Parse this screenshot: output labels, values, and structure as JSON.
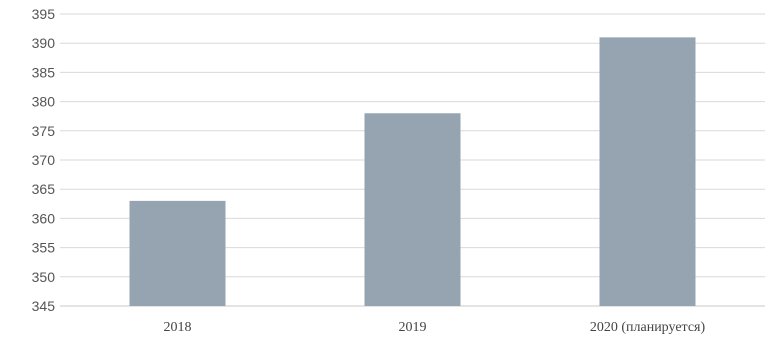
{
  "chart_data": {
    "type": "bar",
    "title": "",
    "xlabel": "",
    "ylabel": "",
    "categories": [
      "2018",
      "2019",
      "2020 (планируется)"
    ],
    "values": [
      363,
      378,
      391
    ],
    "ylim": [
      345,
      395
    ],
    "yticks": [
      345,
      350,
      355,
      360,
      365,
      370,
      375,
      380,
      385,
      390,
      395
    ],
    "grid": true,
    "legend": "none",
    "bar_color": "#96a3b0",
    "grid_color": "#d9d9d9"
  }
}
